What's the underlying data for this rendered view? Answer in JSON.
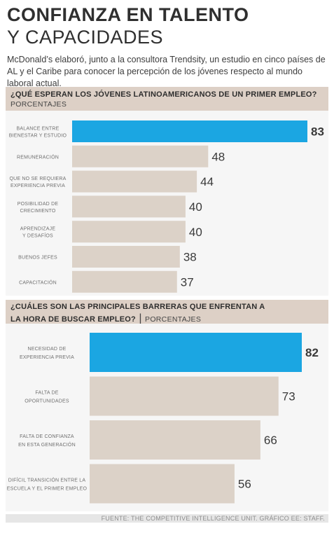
{
  "title": {
    "line1": "CONFIANZA EN TALENTO",
    "line2": "Y CAPACIDADES"
  },
  "intro": "McDonald’s elaboró, junto a la consultora Trendsity, un estudio en cinco países de AL y el Caribe para conocer la percepción de los jóvenes respecto al mundo laboral actual.",
  "colors": {
    "highlight": "#1ba6e2",
    "bar": "#dcd2c8",
    "header": "#ddd0c6",
    "panel": "#f6f6f6"
  },
  "footer": "FUENTE: THE COMPETITIVE INTELLIGENCE UNIT. GRÁFICO EE: STAFF.",
  "chart_data": [
    {
      "type": "bar",
      "orientation": "horizontal",
      "title": "¿QUÉ ESPERAN LOS JÓVENES LATINOAMERICANOS DE UN PRIMER EMPLEO?",
      "subtitle": "PORCENTAJES",
      "categories": [
        [
          "BALANCE ENTRE",
          "BIENESTAR Y ESTUDIO"
        ],
        [
          "REMUNERACIÓN"
        ],
        [
          "QUE NO SE REQUIERA",
          "EXPERIENCIA PREVIA"
        ],
        [
          "POSIBILIDAD DE",
          "CRECIMIENTO"
        ],
        [
          "APRENDIZAJE",
          "Y DESAFÍOS"
        ],
        [
          "BUENOS JEFES"
        ],
        [
          "CAPACITACIÓN"
        ]
      ],
      "values": [
        83,
        48,
        44,
        40,
        40,
        38,
        37
      ],
      "highlight_index": 0,
      "xlim": [
        0,
        83
      ],
      "grid": false
    },
    {
      "type": "bar",
      "orientation": "horizontal",
      "title": "¿CUÁLES SON LAS PRINCIPALES BARRERAS QUE ENFRENTAN A LA HORA DE BUSCAR EMPLEO?",
      "title_lines": [
        "¿CUÁLES SON LAS PRINCIPALES BARRERAS QUE ENFRENTAN A",
        "LA HORA DE BUSCAR EMPLEO?"
      ],
      "subtitle": "PORCENTAJES",
      "categories": [
        [
          "NECESIDAD DE",
          "EXPERIENCIA PREVIA"
        ],
        [
          "FALTA DE",
          "OPORTUNIDADES"
        ],
        [
          "FALTA DE CONFIANZA",
          "EN ESTA GENERACIÓN"
        ],
        [
          "DIFÍCIL TRANSICIÓN ENTRE LA",
          "ESCUELA Y EL PRIMER EMPLEO"
        ]
      ],
      "values": [
        82,
        73,
        66,
        56
      ],
      "highlight_index": 0,
      "xlim": [
        0,
        82
      ],
      "grid": false
    }
  ]
}
